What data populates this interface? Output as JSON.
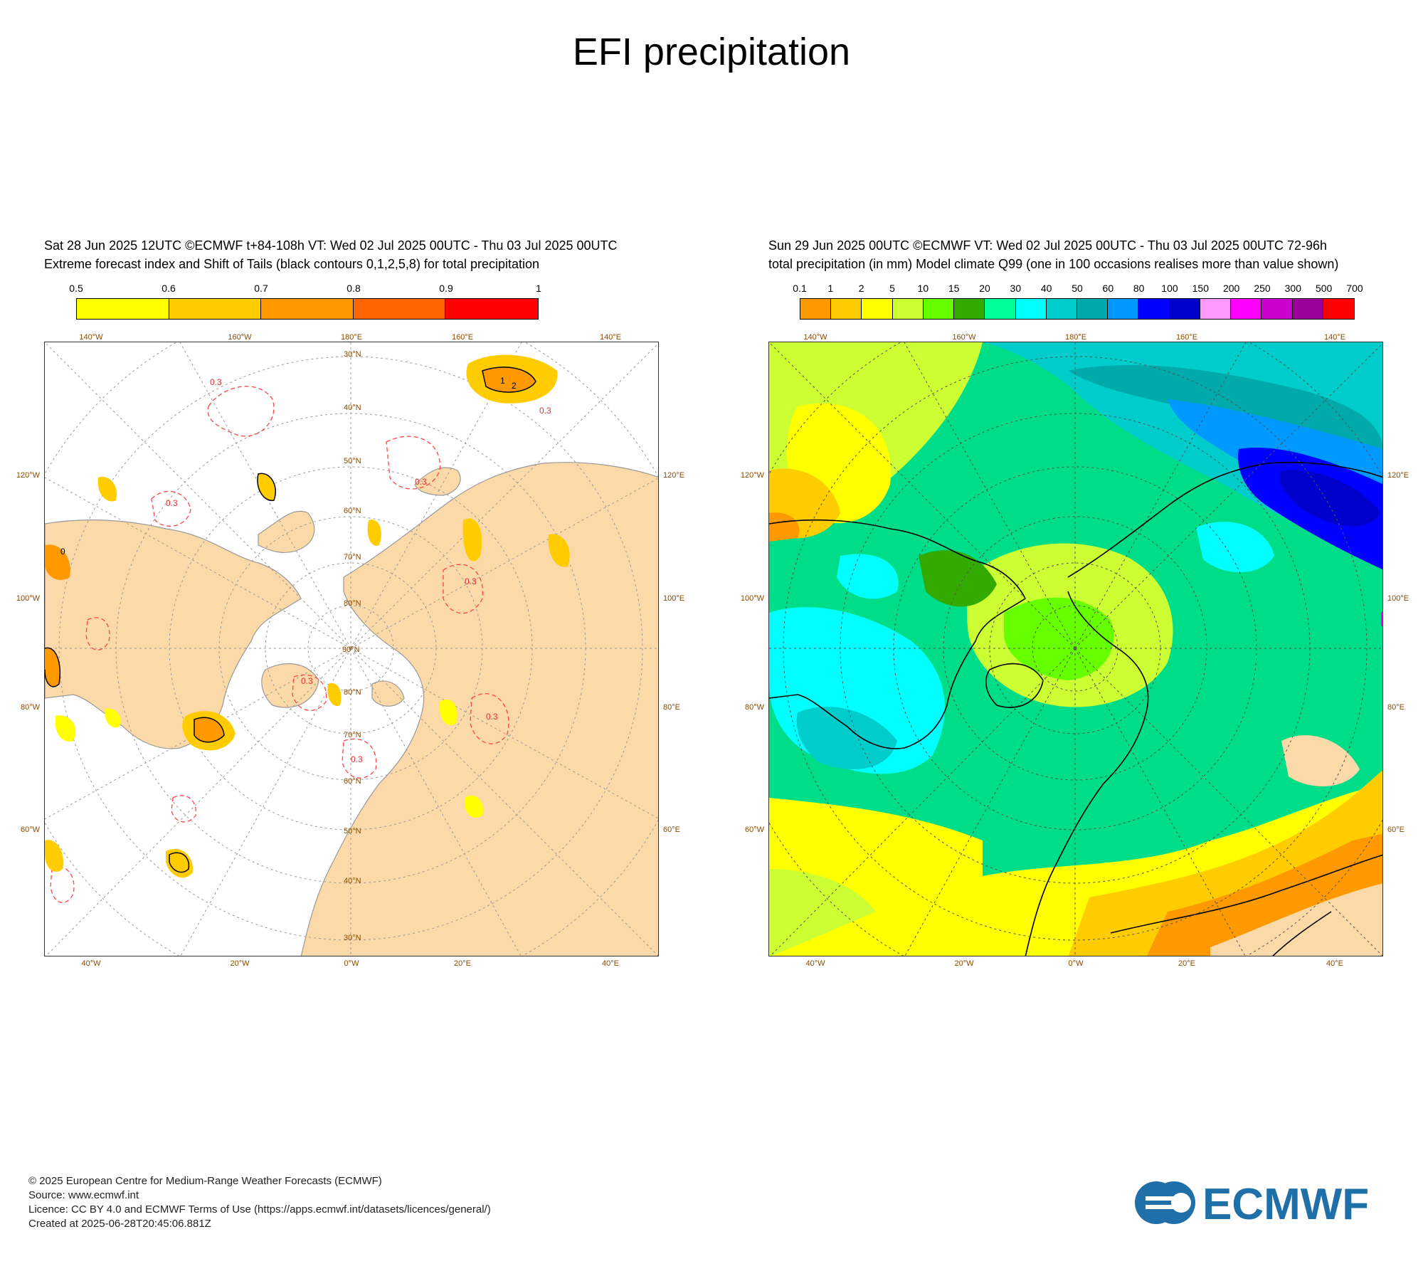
{
  "title": "EFI precipitation",
  "left_panel": {
    "header_line1": "Sat 28 Jun 2025 12UTC ©ECMWF t+84-108h  VT: Wed 02 Jul 2025 00UTC - Thu 03 Jul 2025 00UTC",
    "header_line2": "Extreme forecast index and Shift of Tails (black contours 0,1,2,5,8) for total precipitation",
    "colorbar": {
      "ticks": [
        "0.5",
        "0.6",
        "0.7",
        "0.8",
        "0.9",
        "1"
      ],
      "colors": [
        "#ffff00",
        "#ffcc00",
        "#ff9900",
        "#ff6600",
        "#ff0000"
      ]
    },
    "contour_labels": [
      "0.3",
      "0.3",
      "0.3",
      "0.3",
      "0.3",
      "0.3",
      "0.3",
      "0.3",
      "2",
      "1",
      "0"
    ],
    "lon_top": [
      "140°W",
      "160°W",
      "180°E",
      "160°E",
      "140°E"
    ],
    "lon_bottom": [
      "40°W",
      "20°W",
      "0°W",
      "20°E",
      "40°E"
    ],
    "lat_left": [
      "120°W",
      "100°W",
      "80°W",
      "60°W"
    ],
    "lat_right": [
      "120°E",
      "100°E",
      "80°E",
      "60°E"
    ],
    "grid_lat_labels": [
      "30°N",
      "40°N",
      "50°N",
      "60°N",
      "70°N",
      "80°N",
      "90°N",
      "80°N",
      "70°N",
      "60°N",
      "50°N",
      "40°N",
      "30°N"
    ]
  },
  "right_panel": {
    "header_line1": "Sun 29 Jun 2025 00UTC ©ECMWF VT: Wed 02 Jul 2025 00UTC - Thu 03 Jul 2025 00UTC   72-96h",
    "header_line2": "total precipitation (in mm)  Model climate Q99 (one in 100 occasions realises more than value shown)",
    "colorbar": {
      "ticks": [
        "0.1",
        "1",
        "2",
        "5",
        "10",
        "15",
        "20",
        "30",
        "40",
        "50",
        "60",
        "80",
        "100",
        "150",
        "200",
        "250",
        "300",
        "500",
        "700"
      ],
      "colors": [
        "#ff9900",
        "#ffcc00",
        "#ffff00",
        "#ccff33",
        "#66ff00",
        "#33aa00",
        "#00ff99",
        "#00ffff",
        "#00cccc",
        "#00aaaa",
        "#0099ff",
        "#0000ff",
        "#0000cc",
        "#ff99ff",
        "#ff00ff",
        "#cc00cc",
        "#990099",
        "#ff0000"
      ]
    },
    "lon_top": [
      "140°W",
      "160°W",
      "180°E",
      "160°E",
      "140°E"
    ],
    "lon_bottom": [
      "40°W",
      "20°W",
      "0°W",
      "20°E",
      "40°E"
    ],
    "lat_left": [
      "120°W",
      "100°W",
      "80°W",
      "60°W"
    ],
    "lat_right": [
      "120°E",
      "100°E",
      "80°E",
      "60°E"
    ]
  },
  "footer": {
    "line1": "© 2025 European Centre for Medium-Range Weather Forecasts (ECMWF)",
    "line2": "Source: www.ecmwf.int",
    "line3": "Licence: CC BY 4.0 and ECMWF Terms of Use (https://apps.ecmwf.int/datasets/licences/general/)",
    "line4": "Created at 2025-06-28T20:45:06.881Z"
  },
  "logo": {
    "text": "ECMWF",
    "color": "#1f6fa8"
  }
}
